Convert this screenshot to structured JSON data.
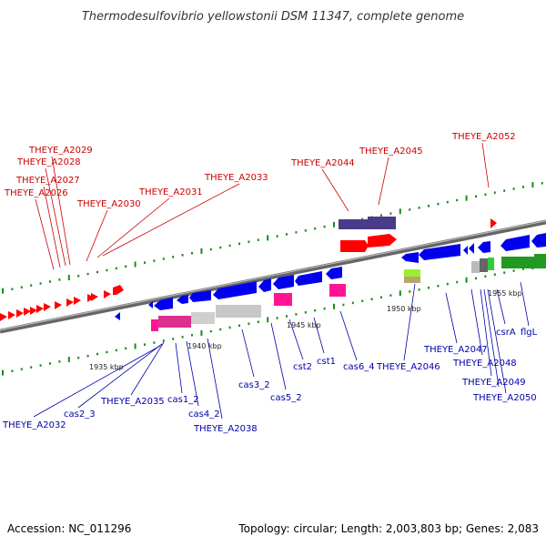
{
  "title": "Thermodesulfovibrio yellowstonii DSM 11347, complete genome",
  "footer": {
    "accession": "Accession: NC_011296",
    "summary": "Topology: circular; Length: 2,003,803 bp; Genes: 2,083"
  },
  "colors": {
    "background": "#ffffff",
    "backbone": "#777777",
    "upper_label": "#cc0000",
    "lower_label": "#0000aa",
    "tick": "#1a8c1a"
  },
  "ruler": [
    "1935 kbp",
    "1940 kbp",
    "1945 kbp",
    "1950 kbp",
    "1955 kbp"
  ],
  "upper_labels": [
    "THEYE_A2029",
    "THEYE_A2028",
    "THEYE_A2027",
    "THEYE_A2026",
    "THEYE_A2030",
    "THEYE_A2031",
    "THEYE_A2033",
    "THEYE_A2044",
    "THEYE_A2045",
    "THEYE_A2052"
  ],
  "lower_labels": [
    "THEYE_A2032",
    "cas2_3",
    "THEYE_A2035",
    "cas1_2",
    "cas4_2",
    "THEYE_A2038",
    "cas3_2",
    "cas5_2",
    "cst2",
    "cst1",
    "cas6_4",
    "THEYE_A2046",
    "THEYE_A2047",
    "THEYE_A2048",
    "THEYE_A2049",
    "THEYE_A2050",
    "csrA",
    "flgL"
  ]
}
